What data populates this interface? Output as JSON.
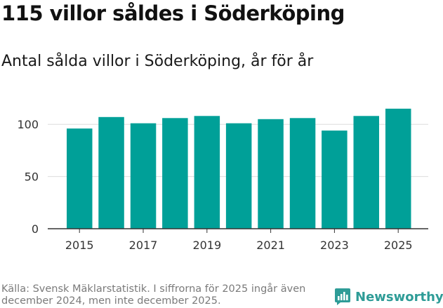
{
  "title": "115 villor såldes i Söderköping",
  "subtitle": "Antal sålda villor i Söderköping, år för år",
  "source": "Källa: Svensk Mäklarstatistik. I siffrorna för 2025 ingår även december 2024, men inte december 2025.",
  "brand": "Newsworthy",
  "colors": {
    "bar": "#00A098",
    "brand": "#2E9C97",
    "grid": "#dddddd",
    "axis": "#333333"
  },
  "chart_data": {
    "type": "bar",
    "categories": [
      "2015",
      "2016",
      "2017",
      "2018",
      "2019",
      "2020",
      "2021",
      "2022",
      "2023",
      "2024",
      "2025"
    ],
    "values": [
      96,
      107,
      101,
      106,
      108,
      101,
      105,
      106,
      94,
      108,
      115
    ],
    "x_tick_labels": [
      "2015",
      "2017",
      "2019",
      "2021",
      "2023",
      "2025"
    ],
    "y_ticks": [
      0,
      50,
      100
    ],
    "ylim": [
      0,
      125
    ],
    "title": "115 villor såldes i Söderköping",
    "subtitle": "Antal sålda villor i Söderköping, år för år",
    "xlabel": "",
    "ylabel": "",
    "grid": true,
    "legend": "none"
  }
}
